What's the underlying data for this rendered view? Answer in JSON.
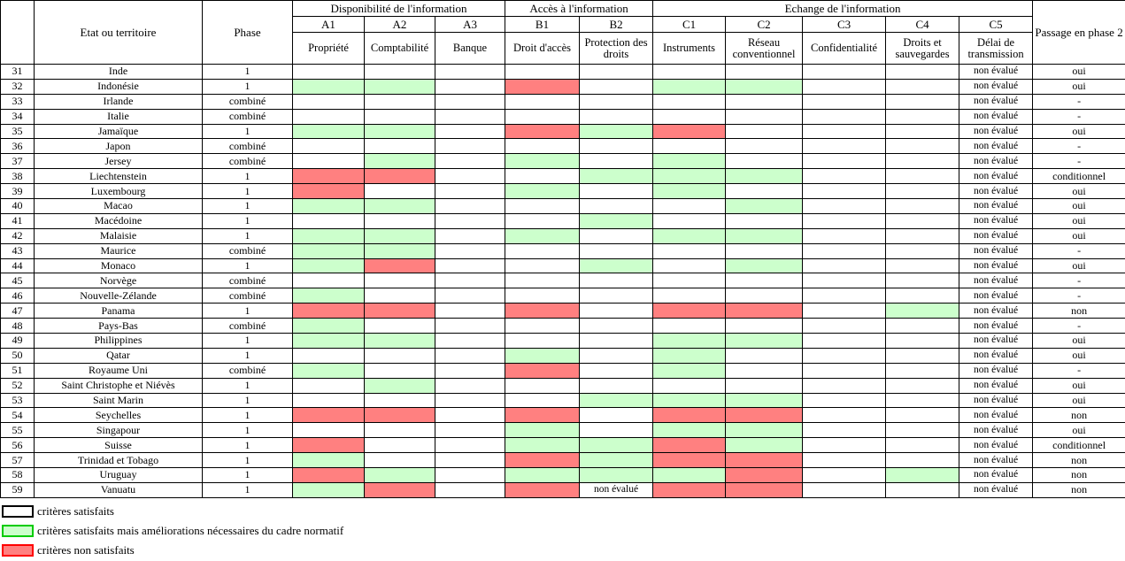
{
  "table": {
    "headers": {
      "etat": "Etat ou territoire",
      "phase": "Phase",
      "groups": [
        {
          "label": "Disponibilité de l'information",
          "span": 3
        },
        {
          "label": "Accès à l'information",
          "span": 2
        },
        {
          "label": "Echange de l'information",
          "span": 5
        }
      ],
      "codes": [
        "A1",
        "A2",
        "A3",
        "B1",
        "B2",
        "C1",
        "C2",
        "C3",
        "C4",
        "C5"
      ],
      "subs": [
        "Propriété",
        "Comptabilité",
        "Banque",
        "Droit d'accès",
        "Protection des droits",
        "Instruments",
        "Réseau conventionnel",
        "Confidentialité",
        "Droits et sauvegardes",
        "Délai de transmission"
      ],
      "passage": "Passage en phase 2"
    },
    "colors": {
      "w": "#ffffff",
      "g": "#ccffcc",
      "r": "#ff8080"
    },
    "non_evalue": "non évalué",
    "rows": [
      {
        "num": "31",
        "name": "Inde",
        "phase": "1",
        "marks": [
          "w",
          "w",
          "w",
          "w",
          "w",
          "w",
          "w",
          "w",
          "w",
          "w"
        ],
        "c5": "non évalué",
        "passage": "oui"
      },
      {
        "num": "32",
        "name": "Indonésie",
        "phase": "1",
        "marks": [
          "g",
          "g",
          "w",
          "r",
          "w",
          "g",
          "g",
          "w",
          "w",
          "w"
        ],
        "c5": "non évalué",
        "passage": "oui"
      },
      {
        "num": "33",
        "name": "Irlande",
        "phase": "combiné",
        "marks": [
          "w",
          "w",
          "w",
          "w",
          "w",
          "w",
          "w",
          "w",
          "w",
          "w"
        ],
        "c5": "non évalué",
        "passage": "-"
      },
      {
        "num": "34",
        "name": "Italie",
        "phase": "combiné",
        "marks": [
          "w",
          "w",
          "w",
          "w",
          "w",
          "w",
          "w",
          "w",
          "w",
          "w"
        ],
        "c5": "non évalué",
        "passage": "-"
      },
      {
        "num": "35",
        "name": "Jamaïque",
        "phase": "1",
        "marks": [
          "g",
          "g",
          "w",
          "r",
          "g",
          "r",
          "w",
          "w",
          "w",
          "w"
        ],
        "c5": "non évalué",
        "passage": "oui"
      },
      {
        "num": "36",
        "name": "Japon",
        "phase": "combiné",
        "marks": [
          "w",
          "w",
          "w",
          "w",
          "w",
          "w",
          "w",
          "w",
          "w",
          "w"
        ],
        "c5": "non évalué",
        "passage": "-"
      },
      {
        "num": "37",
        "name": "Jersey",
        "phase": "combiné",
        "marks": [
          "w",
          "g",
          "w",
          "g",
          "w",
          "g",
          "w",
          "w",
          "w",
          "w"
        ],
        "c5": "non évalué",
        "passage": "-"
      },
      {
        "num": "38",
        "name": "Liechtenstein",
        "phase": "1",
        "marks": [
          "r",
          "r",
          "w",
          "w",
          "g",
          "g",
          "g",
          "w",
          "w",
          "w"
        ],
        "c5": "non évalué",
        "passage": "conditionnel"
      },
      {
        "num": "39",
        "name": "Luxembourg",
        "phase": "1",
        "marks": [
          "r",
          "w",
          "w",
          "g",
          "w",
          "g",
          "w",
          "w",
          "w",
          "w"
        ],
        "c5": "non évalué",
        "passage": "oui"
      },
      {
        "num": "40",
        "name": "Macao",
        "phase": "1",
        "marks": [
          "g",
          "g",
          "w",
          "w",
          "w",
          "w",
          "g",
          "w",
          "w",
          "w"
        ],
        "c5": "non évalué",
        "passage": "oui"
      },
      {
        "num": "41",
        "name": "Macédoine",
        "phase": "1",
        "marks": [
          "w",
          "w",
          "w",
          "w",
          "g",
          "w",
          "w",
          "w",
          "w",
          "w"
        ],
        "c5": "non évalué",
        "passage": "oui"
      },
      {
        "num": "42",
        "name": "Malaisie",
        "phase": "1",
        "marks": [
          "g",
          "g",
          "w",
          "g",
          "w",
          "g",
          "g",
          "w",
          "w",
          "w"
        ],
        "c5": "non évalué",
        "passage": "oui"
      },
      {
        "num": "43",
        "name": "Maurice",
        "phase": "combiné",
        "marks": [
          "g",
          "g",
          "w",
          "w",
          "w",
          "w",
          "w",
          "w",
          "w",
          "w"
        ],
        "c5": "non évalué",
        "passage": "-"
      },
      {
        "num": "44",
        "name": "Monaco",
        "phase": "1",
        "marks": [
          "g",
          "r",
          "w",
          "w",
          "g",
          "w",
          "g",
          "w",
          "w",
          "w"
        ],
        "c5": "non évalué",
        "passage": "oui"
      },
      {
        "num": "45",
        "name": "Norvège",
        "phase": "combiné",
        "marks": [
          "w",
          "w",
          "w",
          "w",
          "w",
          "w",
          "w",
          "w",
          "w",
          "w"
        ],
        "c5": "non évalué",
        "passage": "-"
      },
      {
        "num": "46",
        "name": "Nouvelle-Zélande",
        "phase": "combiné",
        "marks": [
          "g",
          "w",
          "w",
          "w",
          "w",
          "w",
          "w",
          "w",
          "w",
          "w"
        ],
        "c5": "non évalué",
        "passage": "-"
      },
      {
        "num": "47",
        "name": "Panama",
        "phase": "1",
        "marks": [
          "r",
          "r",
          "w",
          "r",
          "w",
          "r",
          "r",
          "w",
          "g",
          "w"
        ],
        "c5": "non évalué",
        "passage": "non"
      },
      {
        "num": "48",
        "name": "Pays-Bas",
        "phase": "combiné",
        "marks": [
          "g",
          "w",
          "w",
          "w",
          "w",
          "w",
          "w",
          "w",
          "w",
          "w"
        ],
        "c5": "non évalué",
        "passage": "-"
      },
      {
        "num": "49",
        "name": "Philippines",
        "phase": "1",
        "marks": [
          "g",
          "g",
          "w",
          "w",
          "w",
          "g",
          "g",
          "w",
          "w",
          "w"
        ],
        "c5": "non évalué",
        "passage": "oui"
      },
      {
        "num": "50",
        "name": "Qatar",
        "phase": "1",
        "marks": [
          "w",
          "w",
          "w",
          "g",
          "w",
          "g",
          "w",
          "w",
          "w",
          "w"
        ],
        "c5": "non évalué",
        "passage": "oui"
      },
      {
        "num": "51",
        "name": "Royaume Uni",
        "phase": "combiné",
        "marks": [
          "g",
          "w",
          "w",
          "r",
          "w",
          "g",
          "w",
          "w",
          "w",
          "w"
        ],
        "c5": "non évalué",
        "passage": "-"
      },
      {
        "num": "52",
        "name": "Saint Christophe et Niévès",
        "phase": "1",
        "marks": [
          "w",
          "g",
          "w",
          "w",
          "w",
          "w",
          "w",
          "w",
          "w",
          "w"
        ],
        "c5": "non évalué",
        "passage": "oui"
      },
      {
        "num": "53",
        "name": "Saint Marin",
        "phase": "1",
        "marks": [
          "w",
          "w",
          "w",
          "w",
          "g",
          "g",
          "g",
          "w",
          "w",
          "w"
        ],
        "c5": "non évalué",
        "passage": "oui"
      },
      {
        "num": "54",
        "name": "Seychelles",
        "phase": "1",
        "marks": [
          "r",
          "r",
          "w",
          "r",
          "w",
          "r",
          "r",
          "w",
          "w",
          "w"
        ],
        "c5": "non évalué",
        "passage": "non"
      },
      {
        "num": "55",
        "name": "Singapour",
        "phase": "1",
        "marks": [
          "w",
          "w",
          "w",
          "g",
          "w",
          "g",
          "g",
          "w",
          "w",
          "w"
        ],
        "c5": "non évalué",
        "passage": "oui"
      },
      {
        "num": "56",
        "name": "Suisse",
        "phase": "1",
        "marks": [
          "r",
          "w",
          "w",
          "g",
          "g",
          "r",
          "g",
          "w",
          "w",
          "w"
        ],
        "c5": "non évalué",
        "passage": "conditionnel"
      },
      {
        "num": "57",
        "name": "Trinidad et Tobago",
        "phase": "1",
        "marks": [
          "g",
          "w",
          "w",
          "r",
          "g",
          "r",
          "r",
          "w",
          "w",
          "w"
        ],
        "c5": "non évalué",
        "passage": "non"
      },
      {
        "num": "58",
        "name": "Uruguay",
        "phase": "1",
        "marks": [
          "r",
          "g",
          "w",
          "g",
          "g",
          "g",
          "r",
          "w",
          "g",
          "w"
        ],
        "c5": "non évalué",
        "passage": "non"
      },
      {
        "num": "59",
        "name": "Vanuatu",
        "phase": "1",
        "marks": [
          "g",
          "r",
          "w",
          "r",
          "w",
          "r",
          "r",
          "w",
          "w",
          "w"
        ],
        "b2_text": "non évalué",
        "c5": "non évalué",
        "passage": "non"
      }
    ]
  },
  "legend": {
    "items": [
      {
        "fill": "#ffffff",
        "border": "#000000",
        "label": "critères satisfaits"
      },
      {
        "fill": "#ccffcc",
        "border": "#00cc00",
        "label": "critères satisfaits mais améliorations nécessaires du cadre normatif"
      },
      {
        "fill": "#ff8080",
        "border": "#ff0000",
        "label": "critères non satisfaits"
      }
    ]
  }
}
